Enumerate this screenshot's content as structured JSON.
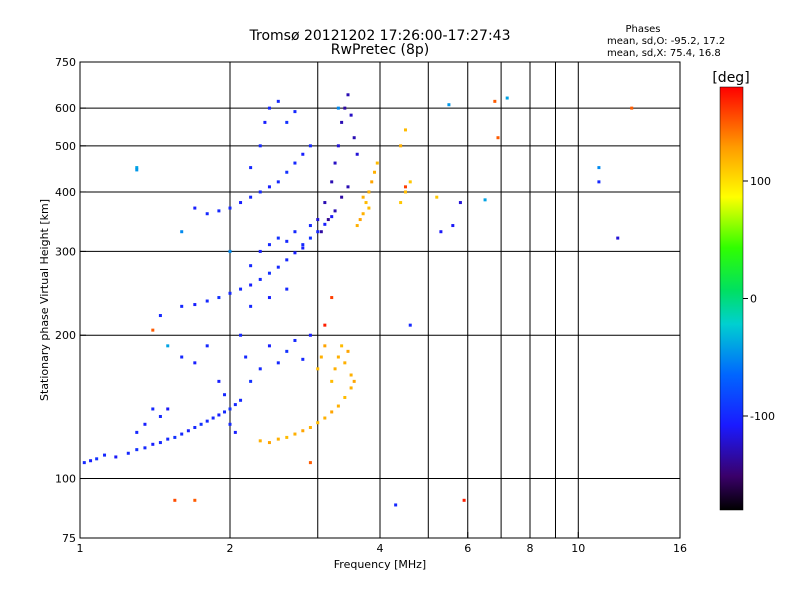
{
  "chart_data": {
    "type": "scatter",
    "title": "Tromsø 20121202 17:26:00-17:27:43",
    "subtitle": "RwPretec (8p)",
    "xlabel": "Frequency [MHz]",
    "ylabel": "Stationary phase Virtual Height [km]",
    "xscale": "log",
    "yscale": "log",
    "xlim": [
      1,
      16
    ],
    "ylim": [
      75,
      750
    ],
    "x_ticks": [
      1,
      2,
      4,
      6,
      8,
      10,
      16
    ],
    "x_tick_labels": [
      "1",
      "2",
      "4",
      "6",
      "8",
      "10",
      "16"
    ],
    "y_ticks": [
      75,
      100,
      200,
      300,
      400,
      500,
      600,
      750
    ],
    "y_tick_labels": [
      "75",
      "100",
      "200",
      "300",
      "400",
      "500",
      "600",
      "750"
    ],
    "grid": true,
    "annotation": {
      "heading": "Phases",
      "line1": "mean, sd,O: -95.2, 17.2",
      "line2": "mean, sd,X:  75.4, 16.8"
    },
    "colorbar": {
      "label": "[deg]",
      "range": [
        -180,
        180
      ],
      "ticks": [
        100,
        0,
        -100
      ],
      "tick_labels": [
        "100",
        "0",
        "-100"
      ]
    },
    "series": [
      {
        "points": [
          [
            1.02,
            108,
            -100
          ],
          [
            1.05,
            109,
            -105
          ],
          [
            1.08,
            110,
            -95
          ],
          [
            1.12,
            112,
            -100
          ],
          [
            1.18,
            111,
            -110
          ],
          [
            1.25,
            113,
            -100
          ],
          [
            1.3,
            115,
            -95
          ],
          [
            1.35,
            116,
            -100
          ],
          [
            1.4,
            118,
            -105
          ],
          [
            1.45,
            119,
            -100
          ],
          [
            1.5,
            121,
            -100
          ],
          [
            1.55,
            122,
            -95
          ],
          [
            1.6,
            124,
            -100
          ],
          [
            1.65,
            126,
            -105
          ],
          [
            1.7,
            128,
            -100
          ],
          [
            1.75,
            130,
            -95
          ],
          [
            1.8,
            132,
            -100
          ],
          [
            1.85,
            134,
            -100
          ],
          [
            1.9,
            136,
            -105
          ],
          [
            1.95,
            138,
            -100
          ],
          [
            2.0,
            140,
            -95
          ],
          [
            2.05,
            143,
            -100
          ],
          [
            2.1,
            146,
            -100
          ],
          [
            1.6,
            230,
            -100
          ],
          [
            1.7,
            232,
            -105
          ],
          [
            1.8,
            236,
            -100
          ],
          [
            1.9,
            240,
            -95
          ],
          [
            2.0,
            245,
            -100
          ],
          [
            2.1,
            250,
            -100
          ],
          [
            2.2,
            255,
            -105
          ],
          [
            2.3,
            262,
            -100
          ],
          [
            2.4,
            270,
            -95
          ],
          [
            2.5,
            278,
            -100
          ],
          [
            2.6,
            288,
            -100
          ],
          [
            2.7,
            298,
            -105
          ],
          [
            2.8,
            310,
            -100
          ],
          [
            2.9,
            320,
            -95
          ],
          [
            3.0,
            330,
            -100
          ],
          [
            3.1,
            342,
            -105
          ],
          [
            3.2,
            355,
            -110
          ],
          [
            2.1,
            200,
            -100
          ],
          [
            2.15,
            180,
            -100
          ],
          [
            2.2,
            160,
            -95
          ],
          [
            2.3,
            170,
            -100
          ],
          [
            2.4,
            190,
            -105
          ],
          [
            2.5,
            175,
            -100
          ],
          [
            2.6,
            185,
            -95
          ],
          [
            2.7,
            195,
            -100
          ],
          [
            2.8,
            178,
            -100
          ],
          [
            2.9,
            200,
            -105
          ],
          [
            2.2,
            280,
            -100
          ],
          [
            2.3,
            300,
            -105
          ],
          [
            2.4,
            310,
            -100
          ],
          [
            2.5,
            320,
            -95
          ],
          [
            2.6,
            315,
            -100
          ],
          [
            2.7,
            330,
            -100
          ],
          [
            2.8,
            305,
            -105
          ],
          [
            2.9,
            340,
            -100
          ],
          [
            3.0,
            350,
            -120
          ],
          [
            3.1,
            380,
            -130
          ],
          [
            3.2,
            420,
            -130
          ],
          [
            3.25,
            460,
            -125
          ],
          [
            3.3,
            500,
            -120
          ],
          [
            3.35,
            560,
            -130
          ],
          [
            3.4,
            600,
            -135
          ],
          [
            3.45,
            640,
            -130
          ],
          [
            3.5,
            580,
            -125
          ],
          [
            3.55,
            520,
            -130
          ],
          [
            3.6,
            480,
            -120
          ],
          [
            3.05,
            330,
            -135
          ],
          [
            3.15,
            350,
            -140
          ],
          [
            3.25,
            365,
            -130
          ],
          [
            3.35,
            390,
            -135
          ],
          [
            3.45,
            410,
            -130
          ],
          [
            2.0,
            370,
            -100
          ],
          [
            2.1,
            380,
            -105
          ],
          [
            2.2,
            390,
            -100
          ],
          [
            2.3,
            400,
            -100
          ],
          [
            2.4,
            410,
            -105
          ],
          [
            2.5,
            420,
            -100
          ],
          [
            2.6,
            440,
            -95
          ],
          [
            2.7,
            460,
            -100
          ],
          [
            2.8,
            480,
            -105
          ],
          [
            2.9,
            500,
            -100
          ],
          [
            1.7,
            370,
            -105
          ],
          [
            1.8,
            360,
            -100
          ],
          [
            1.9,
            365,
            -100
          ],
          [
            2.2,
            450,
            -100
          ],
          [
            2.3,
            500,
            -100
          ],
          [
            2.35,
            560,
            -105
          ],
          [
            2.4,
            600,
            -100
          ],
          [
            2.5,
            620,
            -100
          ],
          [
            2.6,
            560,
            -95
          ],
          [
            2.7,
            590,
            -100
          ],
          [
            1.9,
            160,
            -105
          ],
          [
            1.95,
            150,
            -100
          ],
          [
            2.0,
            130,
            -100
          ],
          [
            2.05,
            125,
            -105
          ],
          [
            1.6,
            180,
            -100
          ],
          [
            1.7,
            175,
            -105
          ],
          [
            1.8,
            190,
            -100
          ],
          [
            1.3,
            125,
            -100
          ],
          [
            1.35,
            130,
            -105
          ],
          [
            1.4,
            140,
            -100
          ],
          [
            1.45,
            135,
            -100
          ],
          [
            5.8,
            380,
            -120
          ],
          [
            5.6,
            340,
            -110
          ],
          [
            4.6,
            210,
            -100
          ],
          [
            1.45,
            220,
            -100
          ],
          [
            2.2,
            230,
            -100
          ],
          [
            2.4,
            240,
            -105
          ],
          [
            2.6,
            250,
            -100
          ]
        ]
      },
      {
        "points": [
          [
            2.3,
            120,
            120
          ],
          [
            2.4,
            119,
            125
          ],
          [
            2.5,
            121,
            120
          ],
          [
            2.6,
            122,
            115
          ],
          [
            2.7,
            124,
            120
          ],
          [
            2.8,
            126,
            125
          ],
          [
            2.9,
            128,
            120
          ],
          [
            3.0,
            131,
            115
          ],
          [
            3.1,
            134,
            120
          ],
          [
            3.2,
            138,
            125
          ],
          [
            3.3,
            142,
            120
          ],
          [
            3.4,
            148,
            115
          ],
          [
            3.5,
            155,
            120
          ],
          [
            3.55,
            160,
            125
          ],
          [
            3.2,
            160,
            115
          ],
          [
            3.25,
            170,
            120
          ],
          [
            3.3,
            180,
            120
          ],
          [
            3.35,
            190,
            115
          ],
          [
            3.4,
            175,
            120
          ],
          [
            3.45,
            185,
            125
          ],
          [
            3.5,
            165,
            120
          ],
          [
            3.0,
            170,
            115
          ],
          [
            3.05,
            180,
            120
          ],
          [
            3.1,
            190,
            125
          ],
          [
            3.7,
            360,
            120
          ],
          [
            3.75,
            380,
            115
          ],
          [
            3.8,
            400,
            120
          ],
          [
            3.85,
            420,
            125
          ],
          [
            3.9,
            440,
            120
          ],
          [
            3.95,
            460,
            115
          ],
          [
            3.6,
            340,
            120
          ],
          [
            3.65,
            350,
            125
          ],
          [
            3.7,
            390,
            120
          ],
          [
            3.8,
            370,
            115
          ],
          [
            4.4,
            380,
            110
          ],
          [
            4.5,
            400,
            115
          ],
          [
            4.6,
            420,
            110
          ],
          [
            4.5,
            540,
            115
          ],
          [
            4.4,
            500,
            120
          ],
          [
            5.2,
            390,
            110
          ],
          [
            3.2,
            240,
            160
          ]
        ]
      },
      {
        "points": [
          [
            6.8,
            620,
            150
          ],
          [
            4.5,
            410,
            160
          ],
          [
            6.9,
            520,
            150
          ],
          [
            5.9,
            90,
            170
          ],
          [
            1.7,
            90,
            150
          ],
          [
            1.55,
            90,
            155
          ],
          [
            1.4,
            205,
            150
          ],
          [
            2.9,
            108,
            150
          ],
          [
            12.8,
            600,
            150
          ],
          [
            3.1,
            210,
            170
          ]
        ]
      },
      {
        "points": [
          [
            1.3,
            450,
            -40
          ],
          [
            1.3,
            445,
            -45
          ],
          [
            1.6,
            330,
            -50
          ],
          [
            1.5,
            190,
            -40
          ],
          [
            2.0,
            300,
            -50
          ],
          [
            6.5,
            385,
            -40
          ],
          [
            11.0,
            450,
            -50
          ],
          [
            5.5,
            610,
            -45
          ],
          [
            7.2,
            630,
            -40
          ],
          [
            3.3,
            600,
            -50
          ]
        ]
      },
      {
        "points": [
          [
            4.3,
            88,
            -100
          ],
          [
            12.0,
            320,
            -120
          ],
          [
            5.3,
            330,
            -110
          ],
          [
            11.0,
            420,
            -100
          ],
          [
            1.5,
            140,
            -110
          ]
        ]
      }
    ]
  }
}
